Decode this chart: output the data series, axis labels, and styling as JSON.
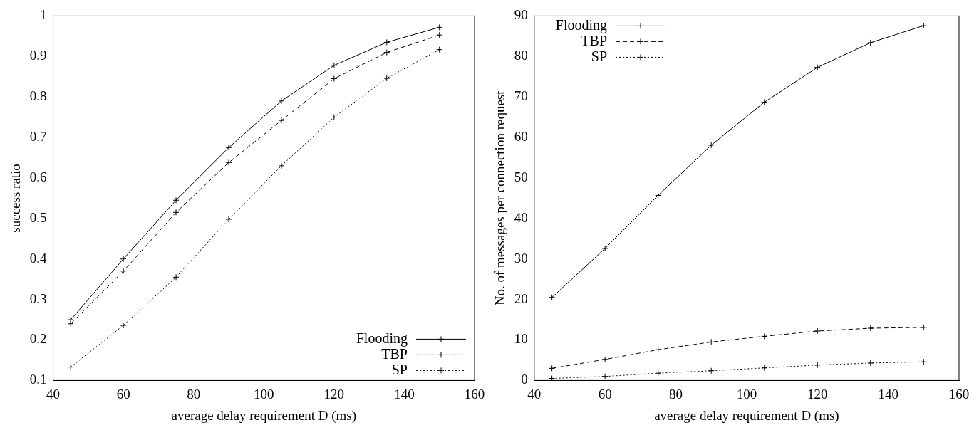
{
  "chart_data": [
    {
      "type": "line",
      "xlabel": "average delay requirement D (ms)",
      "ylabel": "success ratio",
      "x": [
        45,
        60,
        75,
        90,
        105,
        120,
        135,
        150
      ],
      "xlim": [
        40,
        160
      ],
      "xticks": [
        40,
        60,
        80,
        100,
        120,
        140,
        160
      ],
      "ylim": [
        0.1,
        1
      ],
      "yticks": [
        0.1,
        0.2,
        0.3,
        0.4,
        0.5,
        0.6,
        0.7,
        0.8,
        0.9,
        1
      ],
      "grid": false,
      "legend": "bottom right",
      "series": [
        {
          "name": "Flooding",
          "color": "#000000",
          "marker": "cross",
          "line_style": "solid",
          "values": [
            0.25,
            0.4,
            0.545,
            0.675,
            0.79,
            0.878,
            0.935,
            0.972
          ]
        },
        {
          "name": "TBP",
          "color": "#000000",
          "marker": "cross",
          "line_style": "dashed",
          "values": [
            0.24,
            0.37,
            0.515,
            0.638,
            0.742,
            0.845,
            0.91,
            0.953
          ]
        },
        {
          "name": "SP",
          "color": "#000000",
          "marker": "cross",
          "line_style": "dotted",
          "values": [
            0.133,
            0.236,
            0.355,
            0.498,
            0.63,
            0.75,
            0.846,
            0.917
          ]
        }
      ]
    },
    {
      "type": "line",
      "xlabel": "average delay requirement D (ms)",
      "ylabel": "No. of messages per connection request",
      "x": [
        45,
        60,
        75,
        90,
        105,
        120,
        135,
        150
      ],
      "xlim": [
        40,
        160
      ],
      "xticks": [
        40,
        60,
        80,
        100,
        120,
        140,
        160
      ],
      "ylim": [
        0,
        90
      ],
      "yticks": [
        0,
        10,
        20,
        30,
        40,
        50,
        60,
        70,
        80,
        90
      ],
      "grid": false,
      "legend": "top left",
      "series": [
        {
          "name": "Flooding",
          "color": "#000000",
          "marker": "cross",
          "line_style": "solid",
          "values": [
            20.5,
            32.6,
            45.7,
            58.1,
            68.7,
            77.3,
            83.4,
            87.6
          ]
        },
        {
          "name": "TBP",
          "color": "#000000",
          "marker": "cross",
          "line_style": "dashed",
          "values": [
            3,
            5.2,
            7.6,
            9.5,
            10.9,
            12.2,
            12.9,
            13.1
          ]
        },
        {
          "name": "SP",
          "color": "#000000",
          "marker": "cross",
          "line_style": "dotted",
          "values": [
            0.5,
            1,
            1.8,
            2.4,
            3.1,
            3.8,
            4.3,
            4.6
          ]
        }
      ]
    }
  ]
}
